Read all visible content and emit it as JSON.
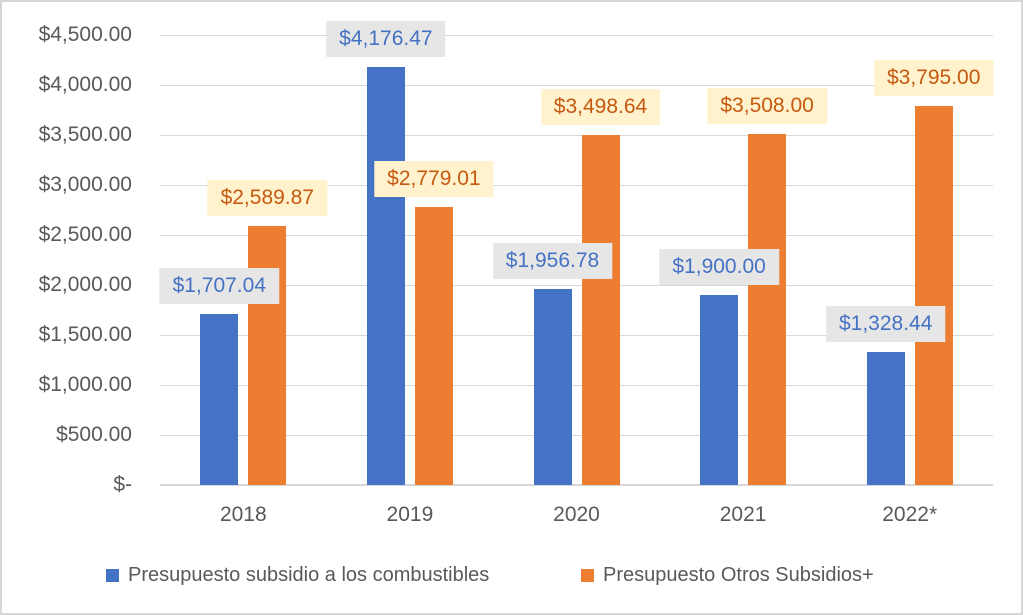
{
  "chart_data": {
    "type": "bar",
    "title": "",
    "categories": [
      "2018",
      "2019",
      "2020",
      "2021",
      "2022*"
    ],
    "series": [
      {
        "name": "Presupuesto subsidio a los combustibles",
        "color": "#4472C4",
        "label_text_color": "#4472C4",
        "label_bg_color": "#E7E6E6",
        "values": [
          1707.04,
          4176.47,
          1956.78,
          1900.0,
          1328.44
        ],
        "data_labels": [
          "$1,707.04",
          "$4,176.47",
          "$1,956.78",
          "$1,900.00",
          "$1,328.44"
        ]
      },
      {
        "name": "Presupuesto Otros Subsidios+",
        "color": "#ED7D31",
        "label_text_color": "#C55A11",
        "label_bg_color": "#FFF2CC",
        "values": [
          2589.87,
          2779.01,
          3498.64,
          3508.0,
          3795.0
        ],
        "data_labels": [
          "$2,589.87",
          "$2,779.01",
          "$3,498.64",
          "$3,508.00",
          "$3,795.00"
        ]
      }
    ],
    "y_axis": {
      "min": 0,
      "max": 4500,
      "step": 500,
      "tick_labels_bottom_to_top": [
        "$-",
        "$500.00",
        "$1,000.00",
        "$1,500.00",
        "$2,000.00",
        "$2,500.00",
        "$3,000.00",
        "$3,500.00",
        "$4,000.00",
        "$4,500.00"
      ]
    },
    "grid": true,
    "legend_position": "bottom",
    "axis_text_color": "#595959",
    "gridline_color": "#D9D9D9"
  }
}
